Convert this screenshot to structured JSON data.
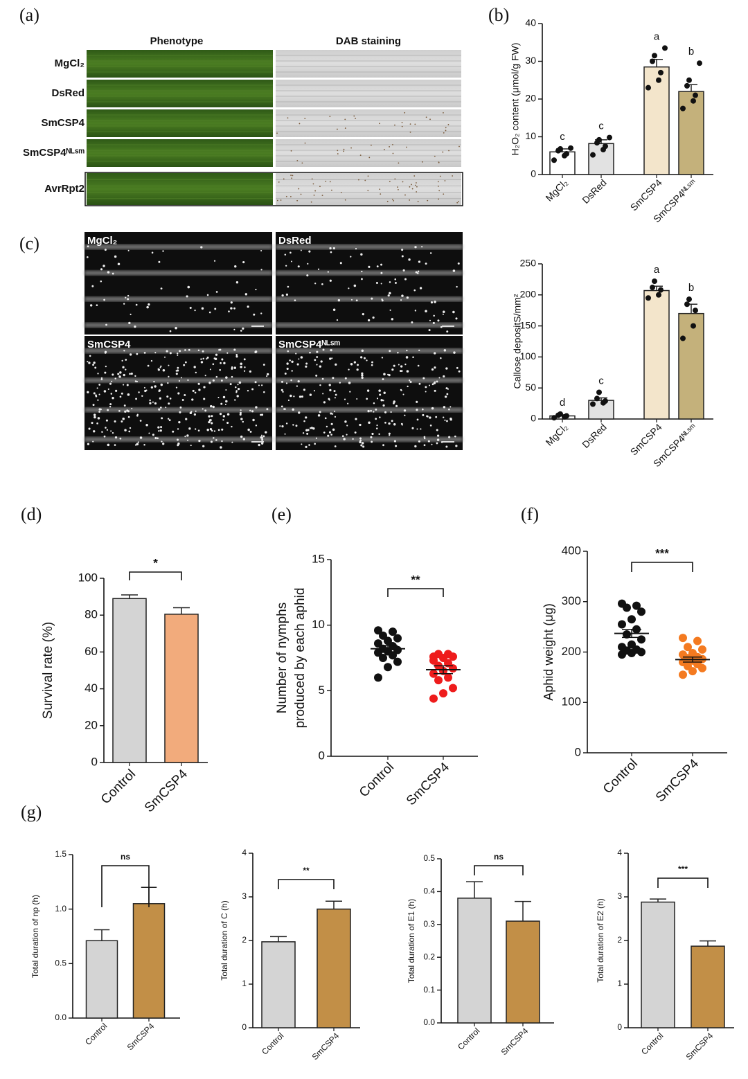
{
  "panel_a": {
    "label": "(a)",
    "columns": [
      "Phenotype",
      "DAB staining"
    ],
    "rows": [
      "MgCl₂",
      "DsRed",
      "SmCSP4",
      "SmCSP4ᴺᴸˢᵐ",
      "AvrRpt2"
    ]
  },
  "panel_c": {
    "label": "(c)",
    "images": [
      "MgCl₂",
      "DsRed",
      "SmCSP4",
      "SmCSP4ᴺᴸˢᵐ"
    ]
  },
  "chart_data": [
    {
      "type": "bar",
      "panel_label": "(b)",
      "ylabel": "H₂O₂ content (μmol/g FW)",
      "categories": [
        "MgCl₂",
        "DsRed",
        "SmCSP4",
        "SmCSP4ᴺᴸˢᵐ"
      ],
      "values": [
        6,
        8.2,
        28.5,
        22
      ],
      "errors": [
        0.8,
        1,
        2,
        1.8
      ],
      "letters": [
        "c",
        "c",
        "a",
        "b"
      ],
      "points": [
        [
          3.8,
          5,
          5.5,
          6.3,
          6.8,
          7
        ],
        [
          5.2,
          6.6,
          7.5,
          8.4,
          9.2,
          9.8
        ],
        [
          23,
          25,
          27,
          30,
          31.5,
          33.5
        ],
        [
          17.5,
          19.5,
          21,
          23.5,
          25,
          29.5
        ]
      ],
      "colors": [
        "#ffffff",
        "#e2e2e2",
        "#f3e5cb",
        "#c4b17b"
      ],
      "point_color": "#111111",
      "ylim": [
        0,
        40
      ],
      "yticks": [
        0,
        10,
        20,
        30,
        40
      ]
    },
    {
      "type": "bar",
      "ylabel": "Callose depositS/mm²",
      "categories": [
        "MgCl₂",
        "DsRed",
        "SmCSP4",
        "SmCSP4ᴺᴸˢᵐ"
      ],
      "values": [
        5,
        30,
        207,
        170
      ],
      "errors": [
        1,
        4,
        7,
        15
      ],
      "letters": [
        "d",
        "c",
        "a",
        "b"
      ],
      "points": [
        [
          2,
          3.5,
          5,
          6,
          8
        ],
        [
          24,
          26,
          29,
          33,
          43
        ],
        [
          195,
          200,
          208,
          212,
          222
        ],
        [
          130,
          150,
          175,
          185,
          193
        ]
      ],
      "colors": [
        "#ffffff",
        "#e2e2e2",
        "#f3e5cb",
        "#c4b17b"
      ],
      "point_color": "#111111",
      "ylim": [
        0,
        250
      ],
      "yticks": [
        0,
        50,
        100,
        150,
        200,
        250
      ]
    },
    {
      "type": "bar",
      "panel_label": "(d)",
      "ylabel": "Survival rate (%)",
      "categories": [
        "Control",
        "SmCSP4"
      ],
      "values": [
        89,
        80.5
      ],
      "errors": [
        2,
        3.5
      ],
      "significance": "*",
      "colors": [
        "#d4d4d4",
        "#f2ab7c"
      ],
      "ylim": [
        0,
        100
      ],
      "yticks": [
        0,
        20,
        40,
        60,
        80,
        100
      ]
    },
    {
      "type": "strip",
      "panel_label": "(e)",
      "ylabel": [
        "Number of nymphs",
        "produced by each aphid"
      ],
      "categories": [
        "Control",
        "SmCSP4"
      ],
      "values": [
        8.2,
        6.6
      ],
      "errors": [
        0.25,
        0.3
      ],
      "significance": "**",
      "points": [
        [
          6,
          6.8,
          7.2,
          7.5,
          7.7,
          7.9,
          8,
          8.1,
          8.2,
          8.4,
          8.6,
          8.8,
          9,
          9.2,
          9.5,
          9.6
        ],
        [
          4.4,
          4.8,
          5.2,
          5.8,
          6,
          6.3,
          6.5,
          6.7,
          6.9,
          7.1,
          7.3,
          7.5,
          7.6,
          7.8,
          7.8,
          7.6
        ]
      ],
      "colors": [
        "#111111",
        "#ee1c1c"
      ],
      "ylim": [
        0,
        15
      ],
      "yticks": [
        0,
        5,
        10,
        15
      ]
    },
    {
      "type": "strip",
      "panel_label": "(f)",
      "ylabel": "Aphid weight (μg)",
      "categories": [
        "Control",
        "SmCSP4"
      ],
      "values": [
        237,
        185
      ],
      "errors": [
        8,
        5
      ],
      "significance": "***",
      "points": [
        [
          195,
          198,
          200,
          203,
          205,
          210,
          215,
          225,
          235,
          245,
          255,
          265,
          280,
          288,
          292,
          296
        ],
        [
          155,
          162,
          168,
          172,
          176,
          180,
          183,
          186,
          188,
          190,
          195,
          198,
          205,
          210,
          222,
          228
        ]
      ],
      "colors": [
        "#111111",
        "#f47a20"
      ],
      "ylim": [
        0,
        400
      ],
      "yticks": [
        0,
        100,
        200,
        300,
        400
      ]
    },
    {
      "type": "bar",
      "panel_label": "(g)",
      "ylabel": "Total duration of np (h)",
      "categories": [
        "Control",
        "SmCSP4"
      ],
      "values": [
        0.71,
        1.05
      ],
      "errors": [
        0.1,
        0.15
      ],
      "significance": "ns",
      "colors": [
        "#d4d4d4",
        "#c28f47"
      ],
      "ylim": [
        0,
        1.5
      ],
      "yticks": [
        {
          "value": 0,
          "label": "0.0"
        },
        0.5,
        {
          "value": 1,
          "label": "1.0"
        },
        1.5
      ]
    },
    {
      "type": "bar",
      "ylabel": "Total duration of C (h)",
      "categories": [
        "Control",
        "SmCSP4"
      ],
      "values": [
        1.97,
        2.72
      ],
      "errors": [
        0.12,
        0.18
      ],
      "significance": "**",
      "colors": [
        "#d4d4d4",
        "#c28f47"
      ],
      "ylim": [
        0,
        4
      ],
      "yticks": [
        0,
        1,
        2,
        3,
        4
      ]
    },
    {
      "type": "bar",
      "ylabel": "Total duration of E1 (h)",
      "categories": [
        "Control",
        "SmCSP4"
      ],
      "values": [
        0.38,
        0.31
      ],
      "errors": [
        0.05,
        0.06
      ],
      "significance": "ns",
      "colors": [
        "#d4d4d4",
        "#c28f47"
      ],
      "ylim": [
        0,
        0.5
      ],
      "yticks": [
        {
          "value": 0,
          "label": "0.0"
        },
        0.1,
        0.2,
        0.3,
        0.4,
        0.5
      ]
    },
    {
      "type": "bar",
      "ylabel": "Total duration of E2 (h)",
      "categories": [
        "Control",
        "SmCSP4"
      ],
      "values": [
        2.88,
        1.87
      ],
      "errors": [
        0.07,
        0.12
      ],
      "significance": "***",
      "colors": [
        "#d4d4d4",
        "#c28f47"
      ],
      "ylim": [
        0,
        4
      ],
      "yticks": [
        0,
        1,
        2,
        3,
        4
      ]
    }
  ]
}
